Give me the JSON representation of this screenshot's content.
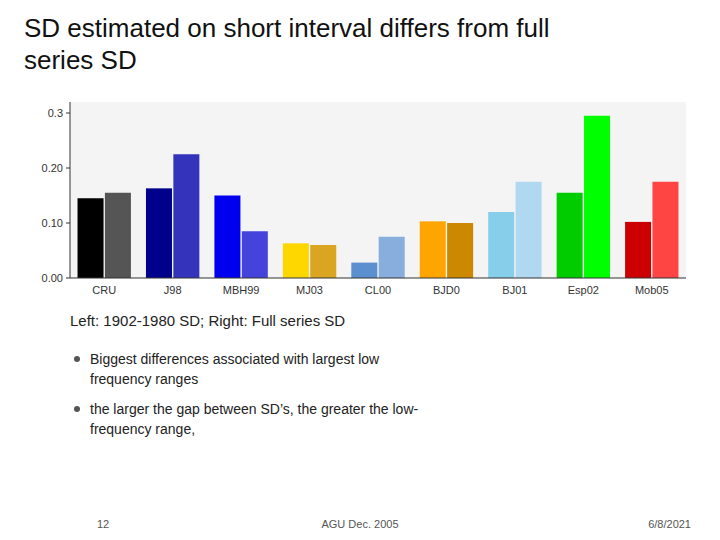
{
  "chart_data": {
    "type": "bar",
    "title": "SD estimated on short interval differs from full series SD",
    "annotations": [
      "Left: 1902-1980 SD; Right: Full series SD",
      "Biggest differences associated with largest low",
      "frequency ranges",
      "the larger the gap between SD’s, the greater the low-",
      "frequency range,",
      "12",
      "AGU Dec. 2005",
      "6/8/2021"
    ],
    "categories": [
      "CRU",
      "J98",
      "MBH99",
      "MJ03",
      "CL00",
      "BJD0",
      "BJ01",
      "Esp02",
      "Mob05"
    ],
    "series": [
      {
        "values": [
          0.145,
          0.163,
          0.15,
          0.063,
          0.028,
          0.103,
          0.12,
          0.155,
          0.102
        ],
        "colors": [
          "#000000",
          "#00008B",
          "#0000EE",
          "#FFD700",
          "#5B8FD0",
          "#FFA500",
          "#87CEEB",
          "#00CC00",
          "#CC0000"
        ]
      },
      {
        "values": [
          0.155,
          0.225,
          0.085,
          0.06,
          0.075,
          0.1,
          0.175,
          0.295,
          0.175
        ],
        "colors": [
          "#555555",
          "#3333BB",
          "#4444DD",
          "#DAA520",
          "#87AEDD",
          "#CC8800",
          "#B0D8F0",
          "#00FF00",
          "#FF4444"
        ]
      }
    ],
    "ylim": [
      0.0,
      0.32
    ],
    "yticks": [
      {
        "value": 0.0,
        "label": "0.00"
      },
      {
        "value": 0.1,
        "label": "0.10"
      },
      {
        "value": 0.2,
        "label": "0.20"
      },
      {
        "value": 0.3,
        "label": "0.3 "
      }
    ],
    "grid": false
  }
}
